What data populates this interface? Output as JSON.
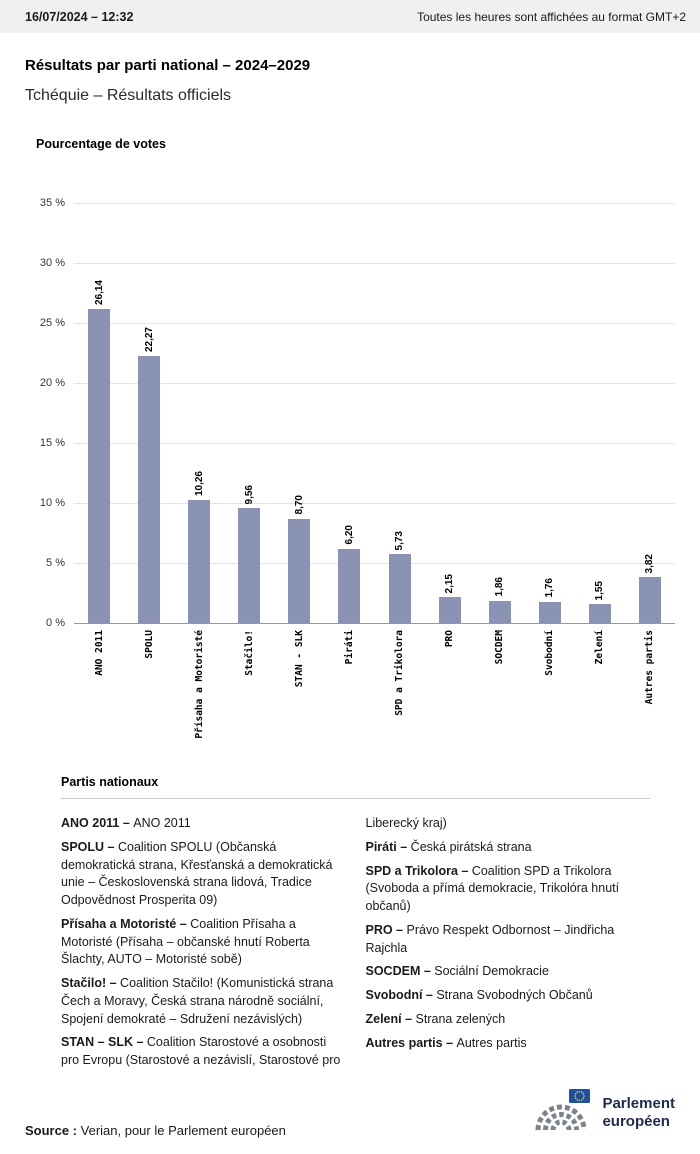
{
  "header": {
    "datetime": "16/07/2024 – 12:32",
    "timezone_note": "Toutes les heures sont affichées au format GMT+2"
  },
  "title": "Résultats par parti national – 2024–2029",
  "subtitle": "Tchéquie – Résultats officiels",
  "chart_data": {
    "type": "bar",
    "title": "Pourcentage de votes",
    "categories": [
      "ANO 2011",
      "SPOLU",
      "Přísaha a Motoristé",
      "Stačilo!",
      "STAN - SLK",
      "Piráti",
      "SPD a Trikolora",
      "PRO",
      "SOCDEM",
      "Svobodní",
      "Zelení",
      "Autres partis"
    ],
    "values": [
      26.14,
      22.27,
      10.26,
      9.56,
      8.7,
      6.2,
      5.73,
      2.15,
      1.86,
      1.76,
      1.55,
      3.82
    ],
    "value_labels": [
      "26,14",
      "22,27",
      "10,26",
      "9,56",
      "8,70",
      "6,20",
      "5,73",
      "2,15",
      "1,86",
      "1,76",
      "1,55",
      "3,82"
    ],
    "ylim": [
      0,
      35
    ],
    "yticks": [
      {
        "label": "35 %",
        "value": 35
      },
      {
        "label": "30 %",
        "value": 30
      },
      {
        "label": "25 %",
        "value": 25
      },
      {
        "label": "20 %",
        "value": 20
      },
      {
        "label": "15 %",
        "value": 15
      },
      {
        "label": "10 %",
        "value": 10
      },
      {
        "label": "5 %",
        "value": 5
      },
      {
        "label": "0 %",
        "value": 0
      }
    ],
    "bar_color": "#8b93b4",
    "grid": true,
    "xlabel": "",
    "ylabel": ""
  },
  "legend": {
    "heading": "Partis nationaux",
    "columns": [
      [
        {
          "name": "ANO 2011 –",
          "desc": "ANO 2011"
        },
        {
          "name": "SPOLU –",
          "desc": "Coalition SPOLU (Občanská demokratická strana, Křesťanská a demokratická unie – Československá strana lidová, Tradice Odpovědnost Prosperita 09)"
        },
        {
          "name": "Přísaha a Motoristé –",
          "desc": "Coalition Přísaha a Motoristé (Přísaha – občanské hnutí Roberta Šlachty, AUTO – Motoristé sobě)"
        },
        {
          "name": "Stačilo! –",
          "desc": "Coalition Stačilo! (Komunistická strana Čech a Moravy, Česká strana národně sociální, Spojení demokraté – Sdružení nezávislých)"
        },
        {
          "name": "STAN – SLK –",
          "desc": "Coalition Starostové a osobnosti pro Evropu (Starostové a nezávislí, Starostové pro"
        }
      ],
      [
        {
          "name": "",
          "desc": "Liberecký kraj)"
        },
        {
          "name": "Piráti –",
          "desc": "Česká pirátská strana"
        },
        {
          "name": "SPD a Trikolora –",
          "desc": "Coalition SPD a Trikolora (Svoboda a přímá demokracie, Trikolóra hnutí občanů)"
        },
        {
          "name": "PRO –",
          "desc": "Právo Respekt Odbornost – Jindřicha Rajchla"
        },
        {
          "name": "SOCDEM –",
          "desc": "Sociální Demokracie"
        },
        {
          "name": "Svobodní –",
          "desc": "Strana Svobodných Občanů"
        },
        {
          "name": "Zelení –",
          "desc": "Strana zelených"
        },
        {
          "name": "Autres partis –",
          "desc": "Autres partis"
        }
      ]
    ]
  },
  "footer": {
    "source_label": "Source :",
    "source_text": "Verian, pour le Parlement européen",
    "logo_line1": "Parlement",
    "logo_line2": "européen"
  }
}
